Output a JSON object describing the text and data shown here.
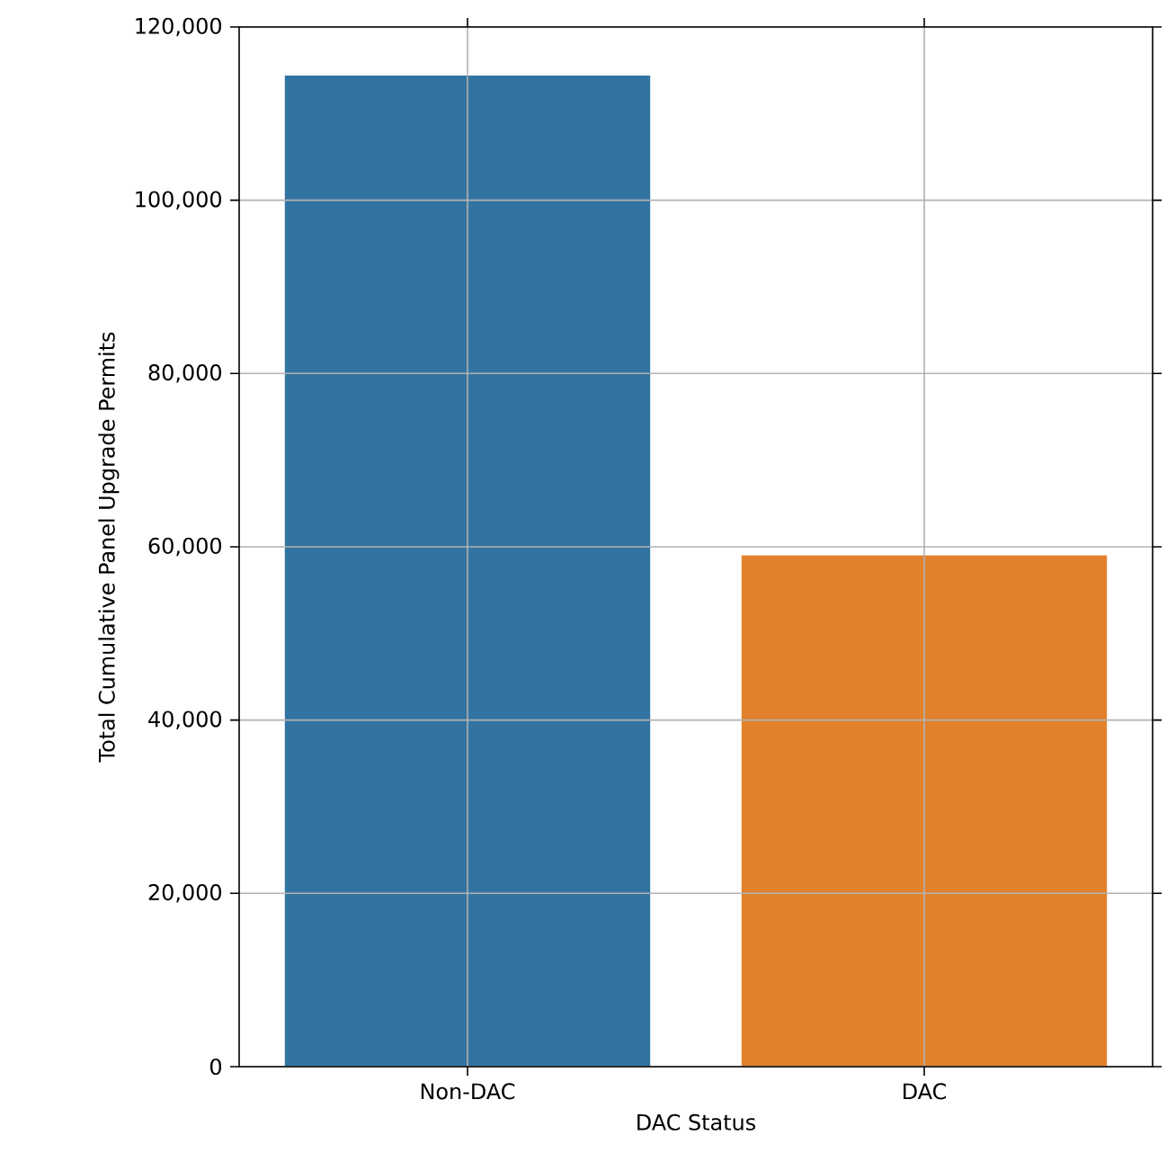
{
  "chart_data": {
    "type": "bar",
    "xlabel": "DAC Status",
    "ylabel": "Total Cumulative Panel Upgrade Permits",
    "categories": [
      "Non-DAC",
      "DAC"
    ],
    "values": [
      114400,
      59000
    ],
    "colors": [
      "#3274a1",
      "#e1812c"
    ],
    "ylim": [
      0,
      120000
    ],
    "yticks": [
      {
        "value": 0,
        "label": "0"
      },
      {
        "value": 20000,
        "label": "20,000"
      },
      {
        "value": 40000,
        "label": "40,000"
      },
      {
        "value": 60000,
        "label": "60,000"
      },
      {
        "value": 80000,
        "label": "80,000"
      },
      {
        "value": 100000,
        "label": "100,000"
      },
      {
        "value": 120000,
        "label": "120,000"
      }
    ],
    "grid": true
  }
}
